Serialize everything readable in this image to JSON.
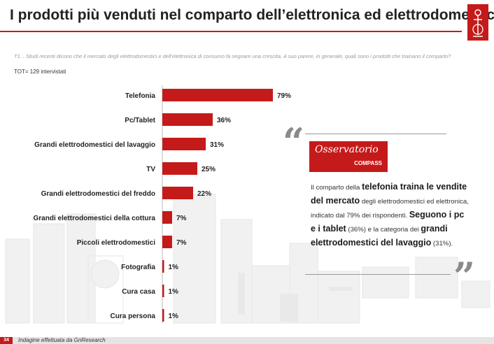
{
  "header": {
    "title": "I prodotti più venduti nel comparto dell’elettronica ed elettrodomestici"
  },
  "question": "T1. . Studi recenti dicono che il mercato degli elettrodomestici e dell’elettronica di consumo fa segnare una crescita. A suo parere, in generale, quali sono i prodotti che trainano il comparto?",
  "base": "TOT= 129 intervistati",
  "chart_data": {
    "type": "bar",
    "orientation": "horizontal",
    "categories": [
      "Telefonia",
      "Pc/Tablet",
      "Grandi elettrodomestici del lavaggio",
      "TV",
      "Grandi elettrodomestici del freddo",
      "Grandi elettrodomestici della cottura",
      "Piccoli elettrodomestici",
      "Fotografia",
      "Cura casa",
      "Cura persona"
    ],
    "values": [
      79,
      36,
      31,
      25,
      22,
      7,
      7,
      1,
      1,
      1
    ],
    "value_labels": [
      "79%",
      "36%",
      "31%",
      "25%",
      "22%",
      "7%",
      "7%",
      "1%",
      "1%",
      "1%"
    ],
    "xlim": [
      0,
      100
    ],
    "color": "#c51a1a",
    "grid": false
  },
  "callout": {
    "brand_name": "Osservatorio",
    "brand_sub": "COMPASS",
    "open_quote": "“",
    "close_quote": "”",
    "t1": "Il comparto della ",
    "b1": "telefonia traina le vendite del mercato",
    "t2": " degli elettrodomestici ed elettronica, indicato dal 79% dei rispondenti. ",
    "b2": "Seguono i pc e i tablet",
    "t3": " (36%) e la categoria dei ",
    "b3": "grandi elettrodomestici del lavaggio",
    "t4": " (31%)."
  },
  "footer": {
    "page_number": "34",
    "note": "Indagine effettuata da GnResearch"
  },
  "colors": {
    "accent": "#c51a1a",
    "quote_mark": "#8a8a8a"
  },
  "icons": {
    "logo": "compass-logo-icon"
  }
}
